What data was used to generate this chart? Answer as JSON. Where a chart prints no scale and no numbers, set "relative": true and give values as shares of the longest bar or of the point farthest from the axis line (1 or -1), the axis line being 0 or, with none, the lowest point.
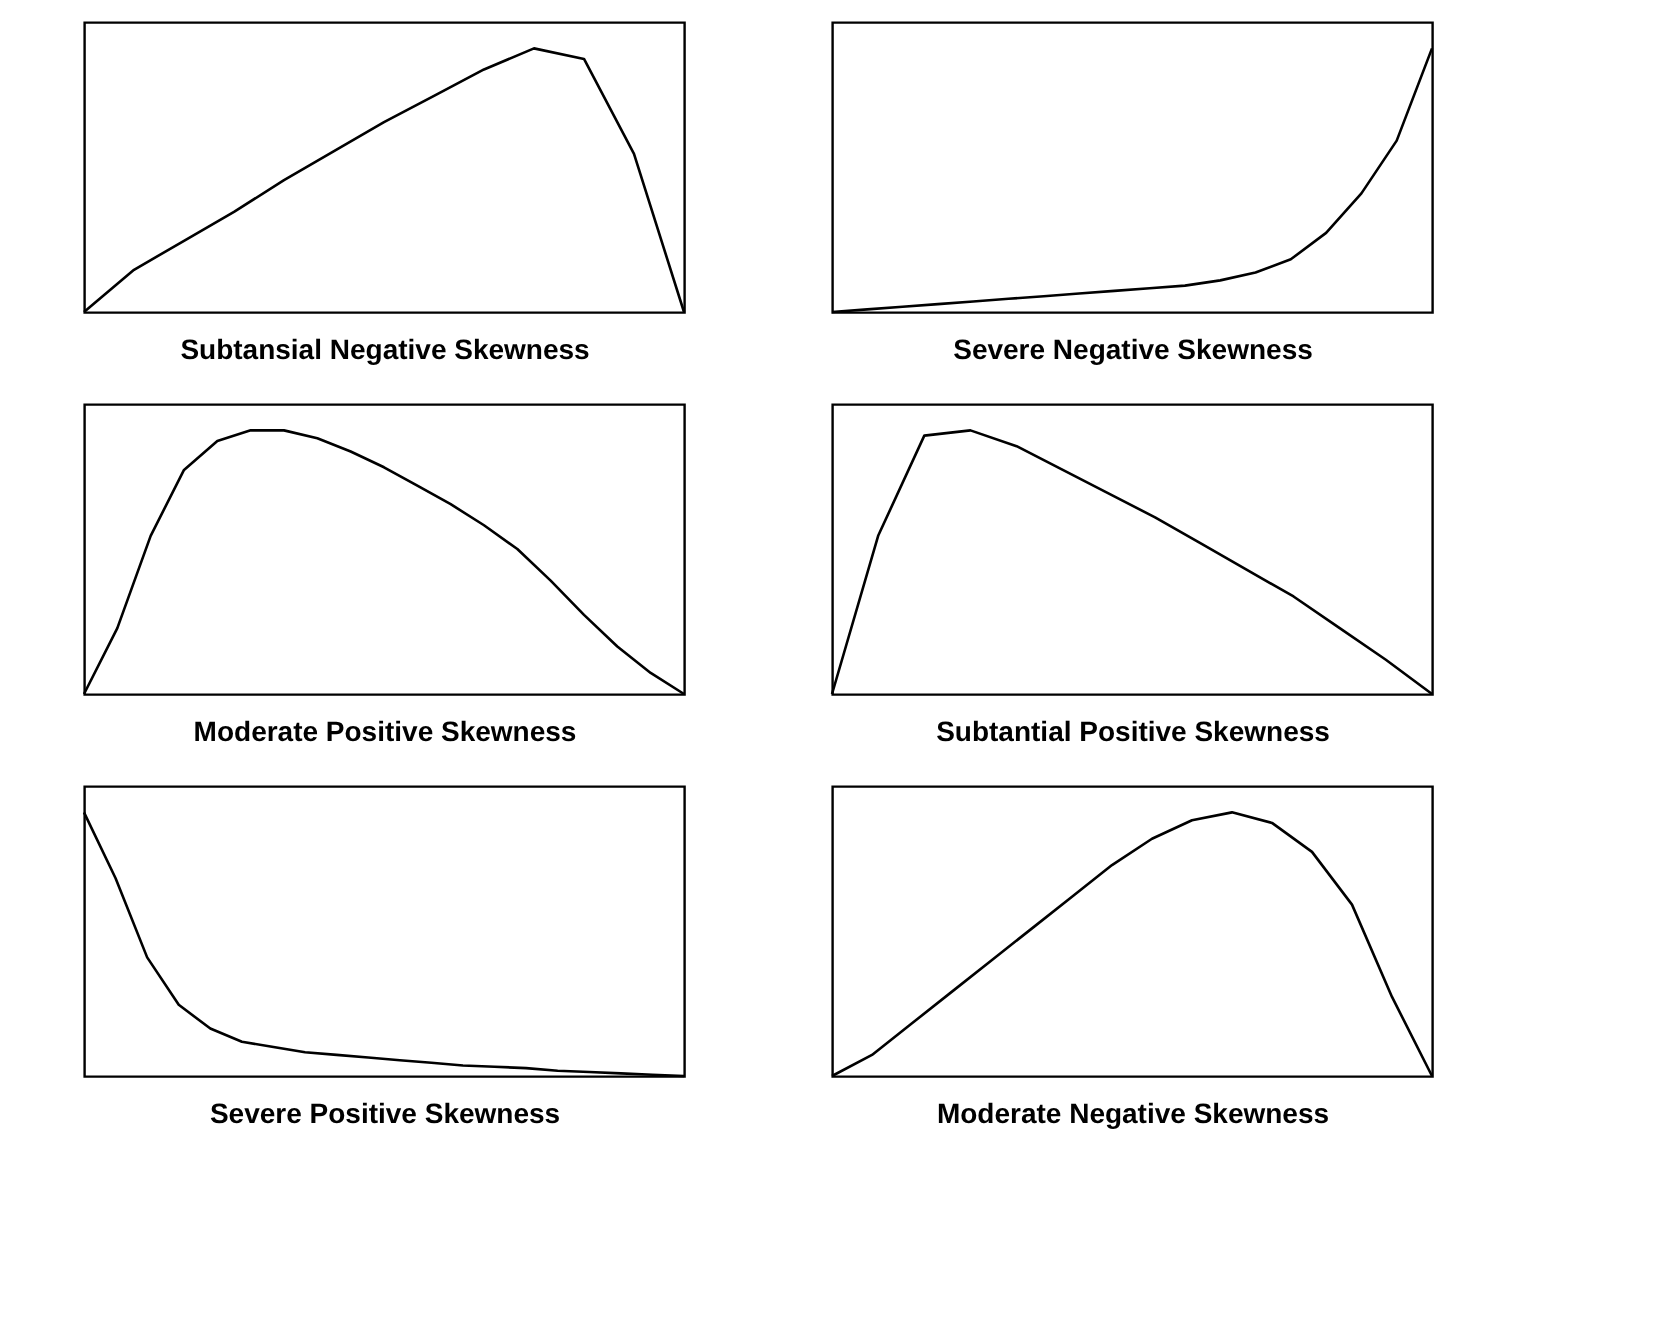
{
  "chart_data": [
    {
      "type": "line",
      "relative": true,
      "xlabel": "Subtansial Negative Skewness",
      "categories": [
        null,
        null,
        null,
        null,
        null,
        null,
        null,
        null,
        null,
        null,
        null,
        null,
        null
      ],
      "series": [
        {
          "color": "#000000",
          "values": [
            0.0,
            0.16,
            0.27,
            0.38,
            0.5,
            0.61,
            0.72,
            0.82,
            0.92,
            1.0,
            0.96,
            0.6,
            0.0
          ]
        }
      ],
      "grid": false,
      "tick_labels": false,
      "marker": "none",
      "line_style": "solid"
    },
    {
      "type": "line",
      "relative": true,
      "xlabel": "Severe Negative Skewness",
      "categories": [
        null,
        null,
        null,
        null,
        null,
        null,
        null,
        null,
        null,
        null,
        null,
        null,
        null,
        null,
        null,
        null,
        null,
        null
      ],
      "series": [
        {
          "color": "#000000",
          "values": [
            0.0,
            0.01,
            0.02,
            0.03,
            0.04,
            0.05,
            0.06,
            0.07,
            0.08,
            0.09,
            0.1,
            0.12,
            0.15,
            0.2,
            0.3,
            0.45,
            0.65,
            1.0
          ]
        }
      ],
      "grid": false,
      "tick_labels": false,
      "marker": "none",
      "line_style": "solid"
    },
    {
      "type": "line",
      "relative": true,
      "xlabel": "Moderate Positive Skewness",
      "categories": [
        null,
        null,
        null,
        null,
        null,
        null,
        null,
        null,
        null,
        null,
        null,
        null,
        null,
        null,
        null,
        null,
        null,
        null,
        null
      ],
      "series": [
        {
          "color": "#000000",
          "values": [
            0.0,
            0.25,
            0.6,
            0.85,
            0.96,
            1.0,
            1.0,
            0.97,
            0.92,
            0.86,
            0.79,
            0.72,
            0.64,
            0.55,
            0.43,
            0.3,
            0.18,
            0.08,
            0.0
          ]
        }
      ],
      "grid": false,
      "tick_labels": false,
      "marker": "none",
      "line_style": "solid"
    },
    {
      "type": "line",
      "relative": true,
      "xlabel": "Subtantial Positive Skewness",
      "categories": [
        null,
        null,
        null,
        null,
        null,
        null,
        null,
        null,
        null,
        null,
        null,
        null,
        null,
        null
      ],
      "series": [
        {
          "color": "#000000",
          "values": [
            0.0,
            0.6,
            0.98,
            1.0,
            0.94,
            0.85,
            0.76,
            0.67,
            0.57,
            0.47,
            0.37,
            0.25,
            0.13,
            0.0
          ]
        }
      ],
      "grid": false,
      "tick_labels": false,
      "marker": "none",
      "line_style": "solid"
    },
    {
      "type": "line",
      "relative": true,
      "xlabel": "Severe Positive Skewness",
      "categories": [
        null,
        null,
        null,
        null,
        null,
        null,
        null,
        null,
        null,
        null,
        null,
        null,
        null,
        null,
        null,
        null,
        null,
        null,
        null,
        null
      ],
      "series": [
        {
          "color": "#000000",
          "values": [
            1.0,
            0.75,
            0.45,
            0.27,
            0.18,
            0.13,
            0.11,
            0.09,
            0.08,
            0.07,
            0.06,
            0.05,
            0.04,
            0.035,
            0.03,
            0.02,
            0.015,
            0.01,
            0.005,
            0.0
          ]
        }
      ],
      "grid": false,
      "tick_labels": false,
      "marker": "none",
      "line_style": "solid"
    },
    {
      "type": "line",
      "relative": true,
      "xlabel": "Moderate Negative Skewness",
      "categories": [
        null,
        null,
        null,
        null,
        null,
        null,
        null,
        null,
        null,
        null,
        null,
        null,
        null,
        null,
        null,
        null
      ],
      "series": [
        {
          "color": "#000000",
          "values": [
            0.0,
            0.08,
            0.2,
            0.32,
            0.44,
            0.56,
            0.68,
            0.8,
            0.9,
            0.97,
            1.0,
            0.96,
            0.85,
            0.65,
            0.3,
            0.0
          ]
        }
      ],
      "grid": false,
      "tick_labels": false,
      "marker": "none",
      "line_style": "solid"
    }
  ]
}
